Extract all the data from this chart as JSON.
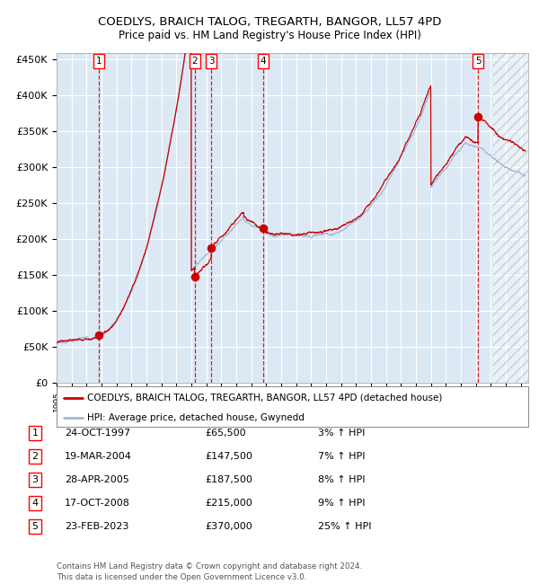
{
  "title": "COEDLYS, BRAICH TALOG, TREGARTH, BANGOR, LL57 4PD",
  "subtitle": "Price paid vs. HM Land Registry's House Price Index (HPI)",
  "ylim": [
    0,
    460000
  ],
  "yticks": [
    0,
    50000,
    100000,
    150000,
    200000,
    250000,
    300000,
    350000,
    400000,
    450000
  ],
  "ytick_labels": [
    "£0",
    "£50K",
    "£100K",
    "£150K",
    "£200K",
    "£250K",
    "£300K",
    "£350K",
    "£400K",
    "£450K"
  ],
  "xlim_start": 1995.0,
  "xlim_end": 2026.5,
  "background_color": "#dce9f5",
  "grid_color": "#ffffff",
  "hpi_line_color": "#a0b8d8",
  "price_line_color": "#cc0000",
  "dashed_vline_color": "#cc0000",
  "transaction_dates_x": [
    1997.82,
    2004.22,
    2005.33,
    2008.8,
    2023.15
  ],
  "transaction_prices_y": [
    65500,
    147500,
    187500,
    215000,
    370000
  ],
  "transaction_labels": [
    "1",
    "2",
    "3",
    "4",
    "5"
  ],
  "legend_label_red": "COEDLYS, BRAICH TALOG, TREGARTH, BANGOR, LL57 4PD (detached house)",
  "legend_label_blue": "HPI: Average price, detached house, Gwynedd",
  "table_rows": [
    [
      "1",
      "24-OCT-1997",
      "£65,500",
      "3% ↑ HPI"
    ],
    [
      "2",
      "19-MAR-2004",
      "£147,500",
      "7% ↑ HPI"
    ],
    [
      "3",
      "28-APR-2005",
      "£187,500",
      "8% ↑ HPI"
    ],
    [
      "4",
      "17-OCT-2008",
      "£215,000",
      "9% ↑ HPI"
    ],
    [
      "5",
      "23-FEB-2023",
      "£370,000",
      "25% ↑ HPI"
    ]
  ],
  "footer_text": "Contains HM Land Registry data © Crown copyright and database right 2024.\nThis data is licensed under the Open Government Licence v3.0.",
  "hatch_region_start": 2024.17,
  "hatch_region_end": 2026.5
}
